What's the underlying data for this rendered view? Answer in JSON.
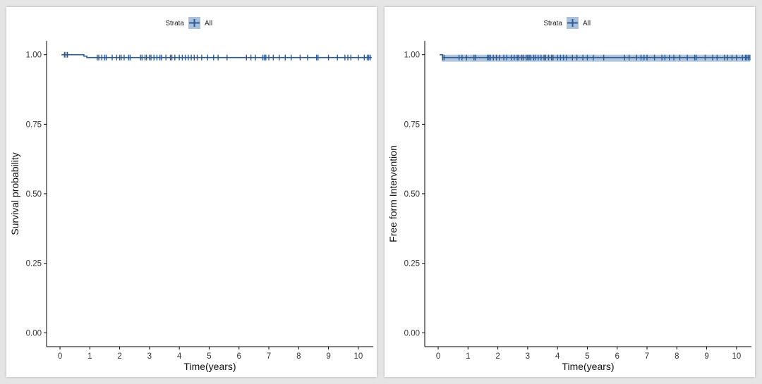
{
  "colors": {
    "line": "#2e5a8f",
    "band": "#a9c1dc",
    "axis": "#000000",
    "legend_key_bg": "#a9c1dc"
  },
  "chart_data": [
    {
      "type": "line",
      "subtype": "kaplan-meier",
      "legend": {
        "title": "Strata",
        "entries": [
          "All"
        ],
        "placement": "top"
      },
      "xlabel": "Time(years)",
      "ylabel": "Survival probability",
      "xlim": [
        -0.45,
        10.5
      ],
      "ylim": [
        -0.05,
        1.05
      ],
      "x_ticks": [
        0,
        1,
        2,
        3,
        4,
        5,
        6,
        7,
        8,
        9,
        10
      ],
      "y_ticks": [
        "0.00",
        "0.25",
        "0.50",
        "0.75",
        "1.00"
      ],
      "confidence_band": false,
      "grid": false,
      "series": [
        {
          "name": "All",
          "steps": [
            [
              0.05,
              1.0
            ],
            [
              0.7,
              1.0
            ],
            [
              0.8,
              0.995
            ],
            [
              0.9,
              0.99
            ],
            [
              10.45,
              0.99
            ]
          ],
          "censor_x": [
            0.15,
            0.2,
            0.25,
            1.25,
            1.3,
            1.4,
            1.5,
            1.55,
            1.75,
            1.9,
            2.0,
            2.05,
            2.15,
            2.3,
            2.35,
            2.7,
            2.75,
            2.85,
            2.9,
            3.0,
            3.05,
            3.15,
            3.25,
            3.35,
            3.4,
            3.55,
            3.7,
            3.75,
            3.85,
            4.0,
            4.1,
            4.2,
            4.3,
            4.4,
            4.5,
            4.6,
            4.75,
            4.95,
            5.15,
            5.3,
            5.6,
            6.25,
            6.4,
            6.55,
            6.8,
            6.85,
            6.9,
            7.0,
            7.15,
            7.35,
            7.55,
            7.75,
            8.05,
            8.3,
            8.6,
            8.65,
            9.0,
            9.3,
            9.55,
            9.65,
            9.75,
            10.0,
            10.2,
            10.3,
            10.35,
            10.4
          ]
        }
      ]
    },
    {
      "type": "line",
      "subtype": "kaplan-meier",
      "legend": {
        "title": "Strata",
        "entries": [
          "All"
        ],
        "placement": "top"
      },
      "xlabel": "Time(years)",
      "ylabel": "Free form Intervention",
      "xlim": [
        -0.45,
        10.5
      ],
      "ylim": [
        -0.05,
        1.05
      ],
      "x_ticks": [
        0,
        1,
        2,
        3,
        4,
        5,
        6,
        7,
        8,
        9,
        10
      ],
      "y_ticks": [
        "0.00",
        "0.25",
        "0.50",
        "0.75",
        "1.00"
      ],
      "confidence_band": true,
      "grid": false,
      "series": [
        {
          "name": "All",
          "steps": [
            [
              0.05,
              1.0
            ],
            [
              0.1,
              1.0
            ],
            [
              0.15,
              0.99
            ],
            [
              10.45,
              0.99
            ]
          ],
          "band": {
            "upper": 1.0,
            "lower": 0.975,
            "from_x": 0.12
          },
          "censor_x": [
            0.15,
            0.2,
            0.7,
            0.8,
            0.95,
            1.2,
            1.25,
            1.65,
            1.7,
            1.75,
            1.85,
            1.95,
            2.05,
            2.2,
            2.3,
            2.45,
            2.55,
            2.65,
            2.7,
            2.8,
            2.85,
            2.95,
            3.0,
            3.05,
            3.1,
            3.2,
            3.25,
            3.35,
            3.45,
            3.55,
            3.6,
            3.7,
            3.8,
            3.85,
            4.0,
            4.1,
            4.2,
            4.3,
            4.5,
            4.65,
            4.85,
            5.0,
            5.2,
            5.55,
            6.25,
            6.4,
            6.65,
            6.8,
            6.9,
            7.0,
            7.25,
            7.5,
            7.6,
            7.75,
            7.9,
            8.1,
            8.35,
            8.6,
            8.65,
            8.95,
            9.2,
            9.35,
            9.6,
            9.7,
            9.85,
            10.0,
            10.2,
            10.3,
            10.35,
            10.4,
            10.45
          ]
        }
      ]
    }
  ]
}
